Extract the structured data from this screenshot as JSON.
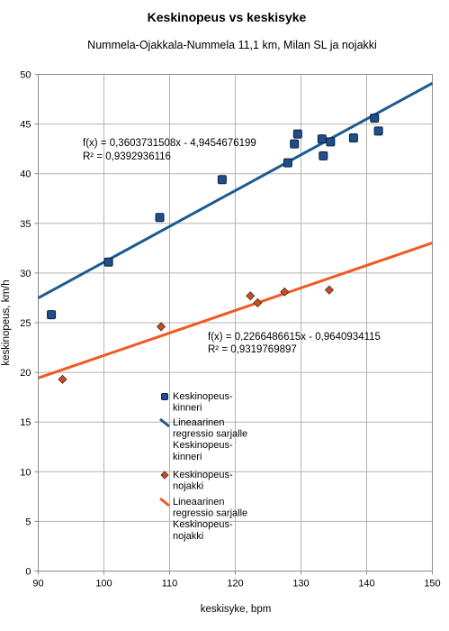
{
  "chart_data": {
    "type": "scatter",
    "title": "Keskinopeus vs keskisyke",
    "subtitle": "Nummela-Ojakkala-Nummela 11,1 km, Milan SL ja nojakki",
    "xlabel": "keskisyke, bpm",
    "ylabel": "keskinopeus, km/h",
    "xlim": [
      90,
      150
    ],
    "ylim": [
      0,
      50
    ],
    "x_ticks": [
      90,
      100,
      110,
      120,
      130,
      140,
      150
    ],
    "y_ticks": [
      0,
      5,
      10,
      15,
      20,
      25,
      30,
      35,
      40,
      45,
      50
    ],
    "grid": true,
    "legend_position": "inside-lower-center",
    "series": [
      {
        "name": "Keskinopeus-kinneri",
        "marker": "square",
        "color": "#1f4e8c",
        "points": [
          {
            "x": 92.0,
            "y": 25.8
          },
          {
            "x": 100.7,
            "y": 31.1
          },
          {
            "x": 108.5,
            "y": 35.6
          },
          {
            "x": 118.0,
            "y": 39.4
          },
          {
            "x": 128.0,
            "y": 41.1
          },
          {
            "x": 129.0,
            "y": 43.0
          },
          {
            "x": 129.5,
            "y": 44.0
          },
          {
            "x": 133.2,
            "y": 43.5
          },
          {
            "x": 133.4,
            "y": 41.8
          },
          {
            "x": 134.5,
            "y": 43.2
          },
          {
            "x": 138.0,
            "y": 43.6
          },
          {
            "x": 141.2,
            "y": 45.6
          },
          {
            "x": 141.8,
            "y": 44.3
          }
        ]
      },
      {
        "name": "Keskinopeus-nojakki",
        "marker": "diamond",
        "color": "#c0502a",
        "points": [
          {
            "x": 93.7,
            "y": 19.3
          },
          {
            "x": 108.7,
            "y": 24.6
          },
          {
            "x": 122.3,
            "y": 27.7
          },
          {
            "x": 123.4,
            "y": 27.0
          },
          {
            "x": 127.5,
            "y": 28.1
          },
          {
            "x": 134.3,
            "y": 28.3
          }
        ]
      }
    ],
    "trendlines": [
      {
        "name": "Lineaarinen regressio sarjalle Keskinopeus-kinneri",
        "series": "Keskinopeus-kinneri",
        "color": "#1b5b91",
        "slope": 0.3603731508,
        "intercept": -4.9454676199,
        "equation": "f(x) = 0,3603731508x - 4,9454676199",
        "r2": "R² = 0,9392936116"
      },
      {
        "name": "Lineaarinen regressio sarjalle Keskinopeus-nojakki",
        "series": "Keskinopeus-nojakki",
        "color": "#f05a22",
        "slope": 0.2266486615,
        "intercept": -0.9640934115,
        "equation": "f(x) = 0,2266486615x - 0,9640934115",
        "r2": "R² = 0,9319769897"
      }
    ],
    "legend": [
      {
        "kind": "marker",
        "series": "Keskinopeus-kinneri",
        "lines": [
          "Keskinopeus-",
          "kinneri"
        ]
      },
      {
        "kind": "line",
        "series": "Lineaarinen regressio sarjalle Keskinopeus-kinneri",
        "lines": [
          "Lineaarinen",
          "regressio sarjalle",
          "Keskinopeus-",
          "kinneri"
        ]
      },
      {
        "kind": "marker",
        "series": "Keskinopeus-nojakki",
        "lines": [
          "Keskinopeus-",
          "nojakki"
        ]
      },
      {
        "kind": "line",
        "series": "Lineaarinen regressio sarjalle Keskinopeus-nojakki",
        "lines": [
          "Lineaarinen",
          "regressio sarjalle",
          "Keskinopeus-",
          "nojakki"
        ]
      }
    ]
  }
}
